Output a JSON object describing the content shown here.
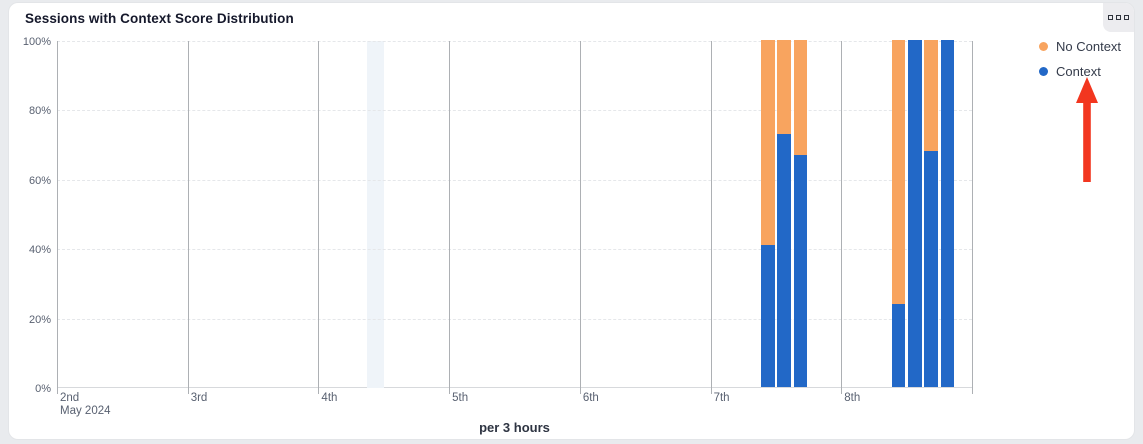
{
  "card": {
    "title": "Sessions with Context Score Distribution",
    "footer_label": "per 3 hours"
  },
  "legend": {
    "items": [
      {
        "label": "No Context",
        "color": "#F8A45F"
      },
      {
        "label": "Context",
        "color": "#2268C7"
      }
    ]
  },
  "annotation": {
    "type": "red-arrow-up",
    "color": "#F2361F",
    "points_at": "Context legend item"
  },
  "colors": {
    "context_blue": "#2268C7",
    "no_context_orange": "#F8A45F",
    "highlight_band": "#eff4f9",
    "day_line": "#adb0b4",
    "grid_dashed": "#e5e7ea",
    "axis_text": "#596171"
  },
  "chart_data": {
    "type": "bar",
    "stacked": true,
    "unit": "percent",
    "title": "Sessions with Context Score Distribution",
    "xlabel": "per 3 hours",
    "ylabel": "",
    "ylim": [
      0,
      100
    ],
    "y_ticks": [
      "0%",
      "20%",
      "40%",
      "60%",
      "80%",
      "100%"
    ],
    "grid": "horizontal-dashed",
    "legend_position": "top-right",
    "x_days": [
      {
        "label": "2nd",
        "sublabel": "May 2024"
      },
      {
        "label": "3rd"
      },
      {
        "label": "4th"
      },
      {
        "label": "5th"
      },
      {
        "label": "6th"
      },
      {
        "label": "7th"
      },
      {
        "label": "8th"
      }
    ],
    "buckets_per_day": 8,
    "highlight_band": {
      "day_index": 2,
      "bucket_index": 3
    },
    "series_names": [
      "Context",
      "No Context"
    ],
    "bars": [
      {
        "day_index": 5,
        "bucket_index": 3,
        "time": "May 7 09:00",
        "context_pct": 41,
        "no_context_pct": 59
      },
      {
        "day_index": 5,
        "bucket_index": 4,
        "time": "May 7 12:00",
        "context_pct": 73,
        "no_context_pct": 27
      },
      {
        "day_index": 5,
        "bucket_index": 5,
        "time": "May 7 15:00",
        "context_pct": 67,
        "no_context_pct": 33
      },
      {
        "day_index": 6,
        "bucket_index": 3,
        "time": "May 8 09:00",
        "context_pct": 24,
        "no_context_pct": 76
      },
      {
        "day_index": 6,
        "bucket_index": 4,
        "time": "May 8 12:00",
        "context_pct": 100,
        "no_context_pct": 0
      },
      {
        "day_index": 6,
        "bucket_index": 5,
        "time": "May 8 15:00",
        "context_pct": 68,
        "no_context_pct": 32
      },
      {
        "day_index": 6,
        "bucket_index": 6,
        "time": "May 8 18:00",
        "context_pct": 100,
        "no_context_pct": 0
      }
    ]
  }
}
